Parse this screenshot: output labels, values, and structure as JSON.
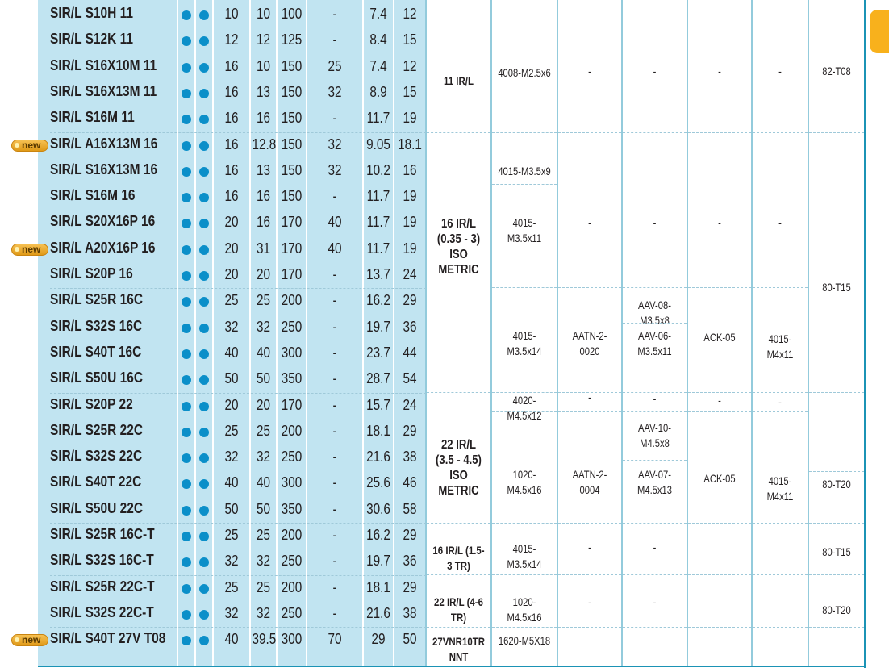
{
  "colors": {
    "row_bg": "#c1e4f1",
    "dot": "#0b8fc9",
    "border": "#1b93b5",
    "tab": "#f8b11c",
    "badge": "#e8a72a"
  },
  "badge_label": "new",
  "rows": [
    {
      "name": "SIR/L S10H 11",
      "new": false,
      "values": [
        "10",
        "10",
        "100",
        "-",
        "7.4",
        "12"
      ]
    },
    {
      "name": "SIR/L S12K 11",
      "new": false,
      "values": [
        "12",
        "12",
        "125",
        "-",
        "8.4",
        "15"
      ]
    },
    {
      "name": "SIR/L S16X10M 11",
      "new": false,
      "values": [
        "16",
        "10",
        "150",
        "25",
        "7.4",
        "12"
      ]
    },
    {
      "name": "SIR/L S16X13M 11",
      "new": false,
      "values": [
        "16",
        "13",
        "150",
        "32",
        "8.9",
        "15"
      ]
    },
    {
      "name": "SIR/L S16M 11",
      "new": false,
      "values": [
        "16",
        "16",
        "150",
        "-",
        "11.7",
        "19"
      ]
    },
    {
      "name": "SIR/L A16X13M 16",
      "new": true,
      "values": [
        "16",
        "12.8",
        "150",
        "32",
        "9.05",
        "18.1"
      ]
    },
    {
      "name": "SIR/L S16X13M 16",
      "new": false,
      "values": [
        "16",
        "13",
        "150",
        "32",
        "10.2",
        "16"
      ]
    },
    {
      "name": "SIR/L S16M 16",
      "new": false,
      "values": [
        "16",
        "16",
        "150",
        "-",
        "11.7",
        "19"
      ]
    },
    {
      "name": "SIR/L S20X16P 16",
      "new": false,
      "values": [
        "20",
        "16",
        "170",
        "40",
        "11.7",
        "19"
      ]
    },
    {
      "name": "SIR/L A20X16P 16",
      "new": true,
      "values": [
        "20",
        "31",
        "170",
        "40",
        "11.7",
        "19"
      ]
    },
    {
      "name": "SIR/L S20P 16",
      "new": false,
      "values": [
        "20",
        "20",
        "170",
        "-",
        "13.7",
        "24"
      ]
    },
    {
      "name": "SIR/L S25R 16C",
      "new": false,
      "values": [
        "25",
        "25",
        "200",
        "-",
        "16.2",
        "29"
      ]
    },
    {
      "name": "SIR/L S32S 16C",
      "new": false,
      "values": [
        "32",
        "32",
        "250",
        "-",
        "19.7",
        "36"
      ]
    },
    {
      "name": "SIR/L S40T 16C",
      "new": false,
      "values": [
        "40",
        "40",
        "300",
        "-",
        "23.7",
        "44"
      ]
    },
    {
      "name": "SIR/L S50U 16C",
      "new": false,
      "values": [
        "50",
        "50",
        "350",
        "-",
        "28.7",
        "54"
      ]
    },
    {
      "name": "SIR/L S20P 22",
      "new": false,
      "values": [
        "20",
        "20",
        "170",
        "-",
        "15.7",
        "24"
      ]
    },
    {
      "name": "SIR/L S25R 22C",
      "new": false,
      "values": [
        "25",
        "25",
        "200",
        "-",
        "18.1",
        "29"
      ]
    },
    {
      "name": "SIR/L S32S 22C",
      "new": false,
      "values": [
        "32",
        "32",
        "250",
        "-",
        "21.6",
        "38"
      ]
    },
    {
      "name": "SIR/L S40T 22C",
      "new": false,
      "values": [
        "40",
        "40",
        "300",
        "-",
        "25.6",
        "46"
      ]
    },
    {
      "name": "SIR/L S50U 22C",
      "new": false,
      "values": [
        "50",
        "50",
        "350",
        "-",
        "30.6",
        "58"
      ]
    },
    {
      "name": "SIR/L S25R 16C-T",
      "new": false,
      "values": [
        "25",
        "25",
        "200",
        "-",
        "16.2",
        "29"
      ]
    },
    {
      "name": "SIR/L S32S 16C-T",
      "new": false,
      "values": [
        "32",
        "32",
        "250",
        "-",
        "19.7",
        "36"
      ]
    },
    {
      "name": "SIR/L S25R 22C-T",
      "new": false,
      "values": [
        "25",
        "25",
        "200",
        "-",
        "18.1",
        "29"
      ]
    },
    {
      "name": "SIR/L S32S 22C-T",
      "new": false,
      "values": [
        "32",
        "32",
        "250",
        "-",
        "21.6",
        "38"
      ]
    },
    {
      "name": "SIR/L S40T 27V T08",
      "new": true,
      "values": [
        "40",
        "39.5",
        "300",
        "70",
        "29",
        "50"
      ]
    }
  ],
  "right_columns": [
    {
      "key": "insert",
      "cells": [
        "11 IR/L",
        "16 IR/L\n(0.35 - 3)\nISO METRIC",
        "22 IR/L\n(3.5 - 4.5)\nISO METRIC",
        "16 IR/L (1.5-3 TR)",
        "22 IR/L (4-6 TR)",
        "27VNR10TR NNT"
      ]
    },
    {
      "key": "screw",
      "cells": [
        "4008-M2.5x6",
        "4015-M3.5x9",
        "4015-M3.5x11",
        "4015-M3.5x14",
        "4020-M4.5x12",
        "1020-M4.5x16",
        "4015-M3.5x14",
        "1020-M4.5x16",
        "1620-M5X18"
      ]
    },
    {
      "key": "key",
      "cells": [
        "-",
        "-",
        "AATN-2-0020",
        "-",
        "AATN-2-0004",
        "-",
        "-",
        ""
      ]
    },
    {
      "key": "anvil",
      "cells": [
        "-",
        "-",
        "AAV-08-M3.5x8",
        "AAV-06-M3.5x11",
        "-",
        "AAV-10-M4.5x8",
        "AAV-07-M4.5x13",
        "-",
        "-",
        ""
      ]
    },
    {
      "key": "clamp",
      "cells": [
        "-",
        "-",
        "ACK-05",
        "-",
        "ACK-05",
        "",
        "",
        ""
      ]
    },
    {
      "key": "clamp-screw",
      "cells": [
        "-",
        "-",
        "4015-M4x11",
        "-",
        "4015-M4x11",
        "",
        "",
        ""
      ]
    },
    {
      "key": "torx",
      "cells": [
        "82-T08",
        "80-T15",
        "",
        "80-T20",
        "80-T15",
        "80-T20",
        ""
      ]
    }
  ]
}
